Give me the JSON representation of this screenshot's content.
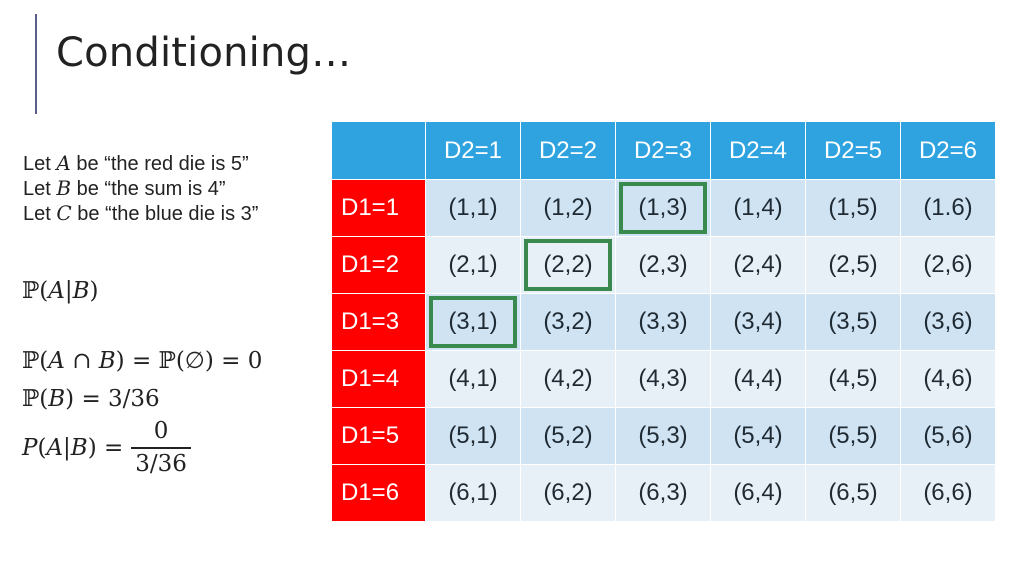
{
  "slide": {
    "title": "Conditioning…",
    "definitions": [
      {
        "prefix": "Let ",
        "var": "A",
        "suffix": " be “the red die is 5”"
      },
      {
        "prefix": "Let ",
        "var": "B",
        "suffix": " be “the sum is 4”"
      },
      {
        "prefix": "Let ",
        "var": "C",
        "suffix": " be “the  blue die is 3”"
      }
    ],
    "equations": {
      "cond": "ℙ(𝐴|𝐵)",
      "intersection": "ℙ(𝐴 ∩ 𝐵) = ℙ(∅) = 0",
      "prob_b": "ℙ(𝐵) = 3/36",
      "result_lhs": "𝑃(𝐴|𝐵) =",
      "result_num": "0",
      "result_den": "3/36"
    }
  },
  "table": {
    "col_headers": [
      "D2=1",
      "D2=2",
      "D2=3",
      "D2=4",
      "D2=5",
      "D2=6"
    ],
    "row_headers": [
      "D1=1",
      "D1=2",
      "D1=3",
      "D1=4",
      "D1=5",
      "D1=6"
    ],
    "cells": [
      [
        "(1,1)",
        "(1,2)",
        "(1,3)",
        "(1,4)",
        "(1,5)",
        "(1.6)"
      ],
      [
        "(2,1)",
        "(2,2)",
        "(2,3)",
        "(2,4)",
        "(2,5)",
        "(2,6)"
      ],
      [
        "(3,1)",
        "(3,2)",
        "(3,3)",
        "(3,4)",
        "(3,5)",
        "(3,6)"
      ],
      [
        "(4,1)",
        "(4,2)",
        "(4,3)",
        "(4,4)",
        "(4,5)",
        "(4,6)"
      ],
      [
        "(5,1)",
        "(5,2)",
        "(5,3)",
        "(5,4)",
        "(5,5)",
        "(5,6)"
      ],
      [
        "(6,1)",
        "(6,2)",
        "(6,3)",
        "(6,4)",
        "(6,5)",
        "(6,6)"
      ]
    ],
    "highlighted": [
      [
        0,
        2
      ],
      [
        1,
        1
      ],
      [
        2,
        0
      ]
    ],
    "colors": {
      "header_blue": "#2ea3df",
      "row_header_red": "#ff0000",
      "highlight_green": "#3a8a4f",
      "band_dark": "#cfe3f3",
      "band_light": "#e8f0f7"
    }
  }
}
